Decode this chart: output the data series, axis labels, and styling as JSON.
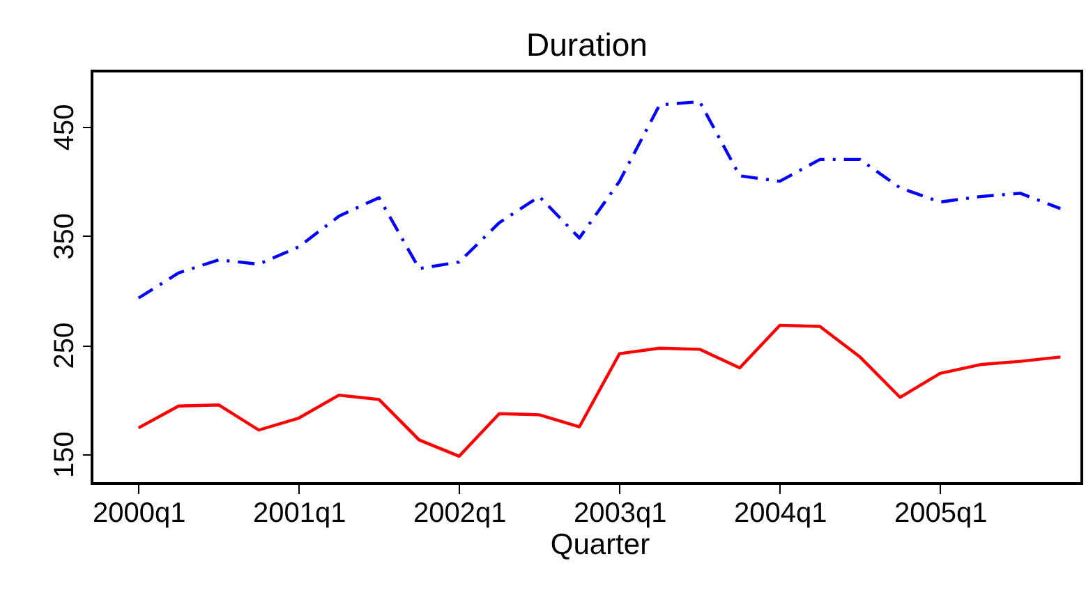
{
  "chart_data": {
    "type": "line",
    "title": "Duration",
    "xlabel": "Quarter",
    "categories": [
      "2000q1",
      null,
      null,
      null,
      "2001q1",
      null,
      null,
      null,
      "2002q1",
      null,
      null,
      null,
      "2003q1",
      null,
      null,
      null,
      "2004q1",
      null,
      null,
      null,
      "2005q1",
      null,
      null,
      null
    ],
    "series": [
      {
        "color": "#0000ff",
        "line_style": "dashdot",
        "values": [
          293,
          316,
          328,
          324,
          340,
          368,
          385,
          320,
          326,
          362,
          386,
          348,
          400,
          470,
          473,
          405,
          400,
          420,
          420,
          394,
          381,
          386,
          389,
          375
        ]
      },
      {
        "color": "#ff0000",
        "line_style": "solid",
        "values": [
          174,
          194,
          195,
          172,
          183,
          204,
          200,
          163,
          148,
          187,
          186,
          175,
          242,
          247,
          246,
          229,
          268,
          267,
          239,
          202,
          224,
          232,
          235,
          239
        ]
      }
    ],
    "ylim": [
      123,
      501
    ],
    "yticks": [
      150,
      250,
      350,
      450
    ],
    "grid": false
  }
}
